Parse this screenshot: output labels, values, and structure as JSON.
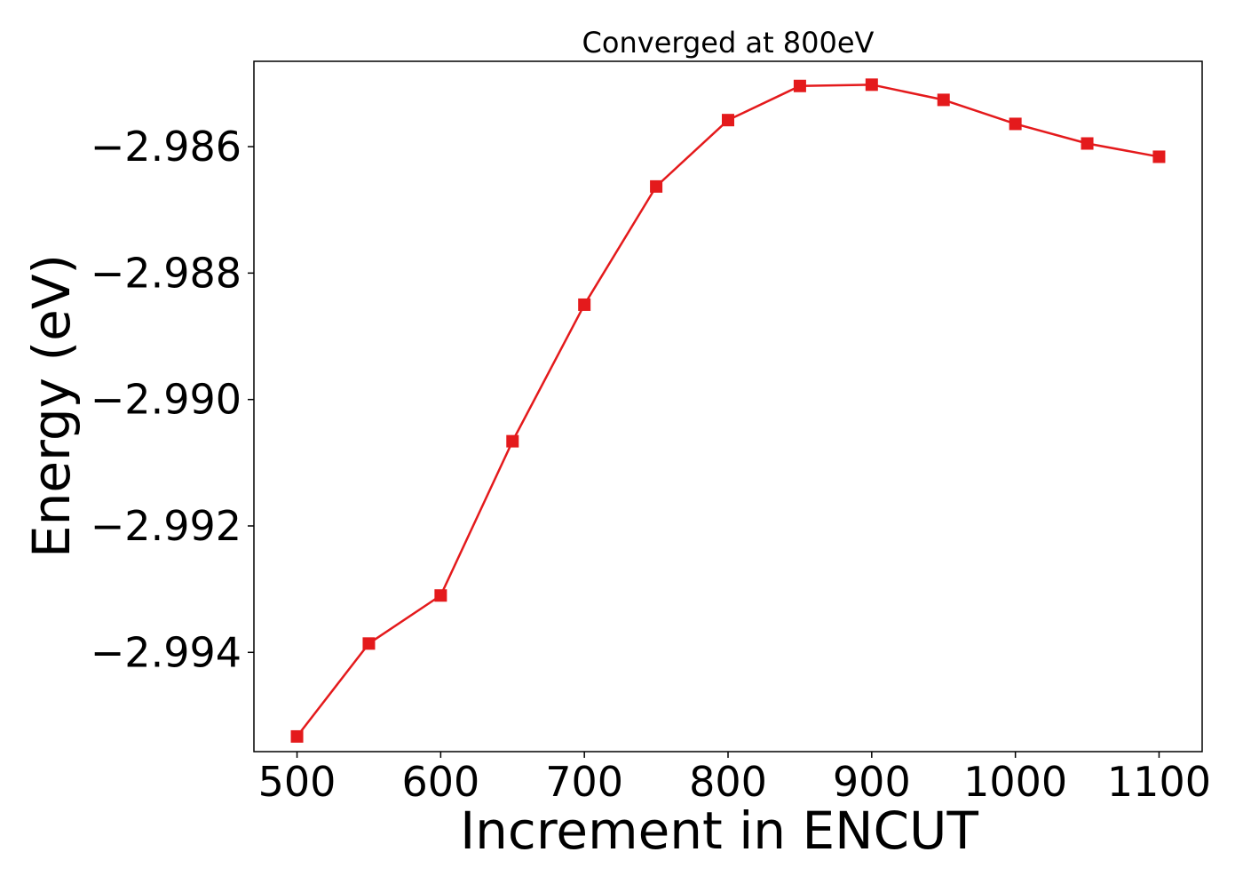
{
  "chart_data": {
    "type": "line",
    "title": "Converged at 800eV",
    "xlabel": "Increment in ENCUT",
    "ylabel": "Energy (eV)",
    "xlim": [
      470,
      1130
    ],
    "ylim": [
      -2.99557,
      -2.98465
    ],
    "xticks": [
      500,
      600,
      700,
      800,
      900,
      1000,
      1100
    ],
    "xtick_labels": [
      "500",
      "600",
      "700",
      "800",
      "900",
      "1000",
      "1100"
    ],
    "yticks": [
      -2.994,
      -2.992,
      -2.99,
      -2.988,
      -2.986
    ],
    "ytick_labels": [
      "−2.994",
      "−2.992",
      "−2.990",
      "−2.988",
      "−2.986"
    ],
    "grid": false,
    "series": [
      {
        "marker": "square",
        "color": "#e41a1c",
        "x": [
          500,
          550,
          600,
          650,
          700,
          750,
          800,
          850,
          900,
          950,
          1000,
          1050,
          1100
        ],
        "y": [
          -2.99533,
          -2.99386,
          -2.9931,
          -2.99066,
          -2.9885,
          -2.98663,
          -2.98558,
          -2.98504,
          -2.98502,
          -2.98526,
          -2.98564,
          -2.98595,
          -2.98616
        ]
      }
    ]
  }
}
